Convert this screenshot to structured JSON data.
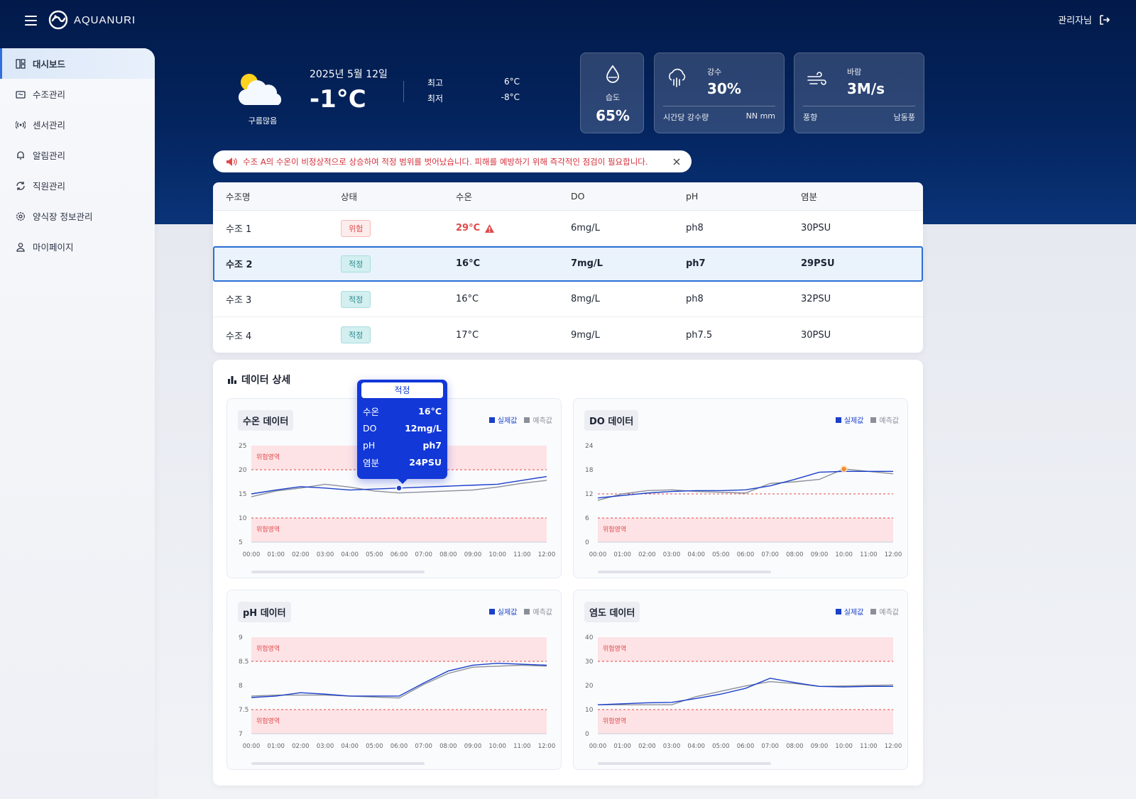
{
  "header": {
    "brand": "AQUANURI",
    "user": "관리자님"
  },
  "sidebar": {
    "items": [
      {
        "label": "대시보드",
        "icon": "dashboard-icon",
        "active": true
      },
      {
        "label": "수조관리",
        "icon": "tank-icon"
      },
      {
        "label": "센서관리",
        "icon": "sensor-icon"
      },
      {
        "label": "알림관리",
        "icon": "bell-icon"
      },
      {
        "label": "직원관리",
        "icon": "staff-icon"
      },
      {
        "label": "양식장 정보관리",
        "icon": "gear-icon"
      },
      {
        "label": "마이페이지",
        "icon": "user-icon"
      }
    ]
  },
  "weather": {
    "condition": "구름많음",
    "date": "2025년 5월 12일",
    "temp": "-1°C",
    "max_label": "최고",
    "max_value": "6°C",
    "min_label": "최저",
    "min_value": "-8°C",
    "humidity_label": "습도",
    "humidity_value": "65%",
    "rain_label": "강수",
    "rain_value": "30%",
    "rain_foot_label": "시간당 강수량",
    "rain_foot_value": "NN mm",
    "wind_label": "바람",
    "wind_value": "3M/s",
    "wind_foot_label": "풍향",
    "wind_foot_value": "남동풍"
  },
  "alert": {
    "text": "수조 A의 수온이 비정상적으로 상승하여 적정 범위를 벗어났습니다. 피해를 예방하기 위해 즉각적인 점검이 필요합니다."
  },
  "table": {
    "headers": [
      "수조명",
      "상태",
      "수온",
      "DO",
      "pH",
      "염분"
    ],
    "rows": [
      {
        "name": "수조 1",
        "status": "위험",
        "status_type": "danger",
        "temp": "29°C",
        "do": "6mg/L",
        "ph": "ph8",
        "salinity": "30PSU"
      },
      {
        "name": "수조 2",
        "status": "적정",
        "status_type": "ok",
        "temp": "16°C",
        "do": "7mg/L",
        "ph": "ph7",
        "salinity": "29PSU",
        "selected": true
      },
      {
        "name": "수조 3",
        "status": "적정",
        "status_type": "ok",
        "temp": "16°C",
        "do": "8mg/L",
        "ph": "ph8",
        "salinity": "32PSU"
      },
      {
        "name": "수조 4",
        "status": "적정",
        "status_type": "ok",
        "temp": "17°C",
        "do": "9mg/L",
        "ph": "ph7.5",
        "salinity": "30PSU"
      }
    ]
  },
  "data_panel": {
    "title": "데이터 상세",
    "legend_actual": "실제값",
    "legend_predicted": "예측값",
    "danger_zone_label": "위험영역"
  },
  "tooltip": {
    "status": "적정",
    "rows": [
      {
        "label": "수온",
        "value": "16°C"
      },
      {
        "label": "DO",
        "value": "12mg/L"
      },
      {
        "label": "pH",
        "value": "ph7"
      },
      {
        "label": "염분",
        "value": "24PSU"
      }
    ]
  },
  "colors": {
    "actual": "#1a3fc9",
    "predicted": "#8a8f99",
    "danger_zone": "#fde3e6",
    "danger_line": "#e04848"
  },
  "chart_data": [
    {
      "type": "line",
      "title": "수온 데이터",
      "x": [
        "00:00",
        "01:00",
        "02:00",
        "03:00",
        "04:00",
        "05:00",
        "06:00",
        "07:00",
        "08:00",
        "09:00",
        "10:00",
        "11:00",
        "12:00"
      ],
      "ylim": [
        5,
        25
      ],
      "yticks": [
        "5",
        "10",
        "15",
        "20",
        "25"
      ],
      "danger_upper": [
        20,
        25
      ],
      "danger_lower": [
        5,
        10
      ],
      "series": [
        {
          "name": "실제값",
          "values": [
            15,
            15.8,
            16.5,
            16.2,
            15.8,
            16,
            16.2,
            16.4,
            16.6,
            16.8,
            17,
            17.8,
            18.6
          ]
        },
        {
          "name": "예측값",
          "values": [
            14.4,
            15.6,
            16.2,
            17,
            16.4,
            15.6,
            15.2,
            15.4,
            15.6,
            15.8,
            16.4,
            17.2,
            17.8
          ]
        }
      ]
    },
    {
      "type": "line",
      "title": "DO 데이터",
      "x": [
        "00:00",
        "01:00",
        "02:00",
        "03:00",
        "04:00",
        "05:00",
        "06:00",
        "07:00",
        "08:00",
        "09:00",
        "10:00",
        "11:00",
        "12:00"
      ],
      "ylim": [
        0,
        24
      ],
      "yticks": [
        "0",
        "6",
        "12",
        "18",
        "24"
      ],
      "danger_lower": [
        0,
        6
      ],
      "danger_line": 12,
      "series": [
        {
          "name": "실제값",
          "values": [
            11,
            11.6,
            12.2,
            12.6,
            12.8,
            12.8,
            13,
            14,
            15.6,
            17.4,
            17.6,
            17.6,
            17.6
          ]
        },
        {
          "name": "예측값",
          "values": [
            10.4,
            12,
            12.8,
            13,
            12.6,
            12.4,
            12.2,
            14.6,
            15,
            15.6,
            18.2,
            17.6,
            17
          ]
        }
      ]
    },
    {
      "type": "line",
      "title": "pH 데이터",
      "x": [
        "00:00",
        "01:00",
        "02:00",
        "03:00",
        "04:00",
        "05:00",
        "06:00",
        "07:00",
        "08:00",
        "09:00",
        "10:00",
        "11:00",
        "12:00"
      ],
      "ylim": [
        7,
        9
      ],
      "yticks": [
        "7",
        "7.5",
        "8",
        "8.5",
        "9"
      ],
      "danger_upper": [
        8.5,
        9
      ],
      "danger_lower": [
        7,
        7.5
      ],
      "series": [
        {
          "name": "실제값",
          "values": [
            7.75,
            7.78,
            7.85,
            7.82,
            7.78,
            7.78,
            7.78,
            8.05,
            8.3,
            8.42,
            8.46,
            8.44,
            8.42
          ]
        },
        {
          "name": "예측값",
          "values": [
            7.78,
            7.8,
            7.8,
            7.8,
            7.78,
            7.76,
            7.74,
            8.02,
            8.25,
            8.38,
            8.4,
            8.42,
            8.4
          ]
        }
      ]
    },
    {
      "type": "line",
      "title": "염도 데이터",
      "x": [
        "00:00",
        "01:00",
        "02:00",
        "03:00",
        "04:00",
        "05:00",
        "06:00",
        "07:00",
        "08:00",
        "09:00",
        "10:00",
        "11:00",
        "12:00"
      ],
      "ylim": [
        0,
        40
      ],
      "yticks": [
        "0",
        "10",
        "20",
        "30",
        "40"
      ],
      "danger_upper": [
        30,
        40
      ],
      "danger_lower": [
        0,
        10
      ],
      "series": [
        {
          "name": "실제값",
          "values": [
            12,
            12.4,
            12.8,
            13,
            14.6,
            16.4,
            18.8,
            23,
            21.2,
            19.6,
            19.4,
            19.6,
            19.6
          ]
        },
        {
          "name": "예측값",
          "values": [
            12,
            12,
            12,
            12,
            15.4,
            17.6,
            19.8,
            21.6,
            20.8,
            19.6,
            19.8,
            20,
            20.2
          ]
        }
      ]
    }
  ]
}
